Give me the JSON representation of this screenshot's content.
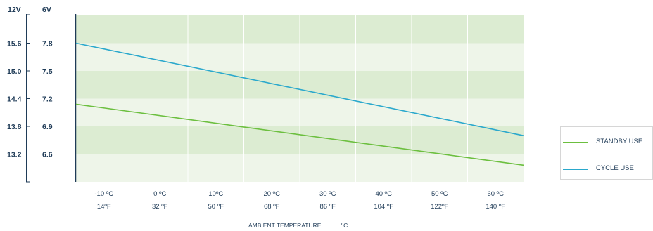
{
  "chart_data": {
    "type": "line",
    "y_left_header": "12V",
    "y_right_header": "6V",
    "y_ticks_12v": [
      "15.6",
      "15.0",
      "14.4",
      "13.8",
      "13.2"
    ],
    "y_ticks_6v": [
      "7.8",
      "7.5",
      "7.2",
      "6.9",
      "6.6"
    ],
    "ylim_12v": [
      12.6,
      16.2
    ],
    "x_categories_c": [
      "-10 ºC",
      "0 ºC",
      "10ºC",
      "20 ºC",
      "30 ºC",
      "40 ºC",
      "50 ºC",
      "60 ºC"
    ],
    "x_categories_f": [
      "14ºF",
      "32 ºF",
      "50 ºF",
      "68 ºF",
      "86 ºF",
      "104 ºF",
      "122ºF",
      "140 ºF"
    ],
    "x_range_c": [
      -15,
      65
    ],
    "xlabel": "AMBIENT TEMPERATURE",
    "xlabel_unit": "ºC",
    "series": [
      {
        "name": "STANDBY USE",
        "color": "#6cbf3f",
        "x": [
          -15,
          65
        ],
        "y": [
          14.28,
          12.96
        ]
      },
      {
        "name": "CYCLE USE",
        "color": "#2aa8cc",
        "x": [
          -15,
          65
        ],
        "y": [
          15.6,
          13.6
        ]
      }
    ],
    "legend_position": "right",
    "grid": true,
    "band_colors": [
      "#dcecd2",
      "#eef5e9"
    ]
  }
}
